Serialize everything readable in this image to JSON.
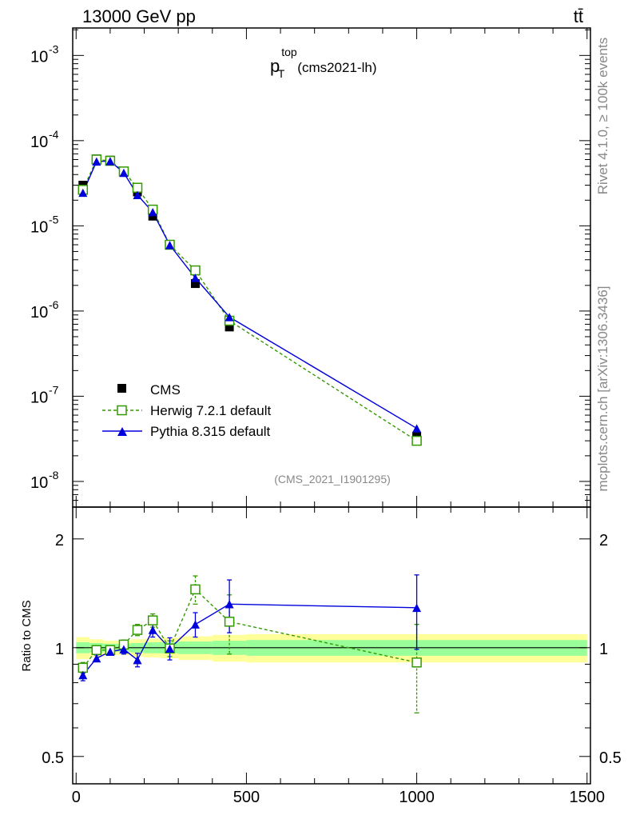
{
  "header": {
    "energy_label": "13000 GeV pp",
    "process_label": "tt̄"
  },
  "side_labels": {
    "rivet": "Rivet 4.1.0, ≥ 100k events",
    "source": "mcplots.cern.ch [arXiv:1306.3436]"
  },
  "plot_title": {
    "var": "p",
    "sup": "top",
    "sub": "T",
    "suffix": "(cms2021-lh)"
  },
  "watermark": "(CMS_2021_I1901295)",
  "legend": {
    "cms": "CMS",
    "herwig": "Herwig 7.2.1 default",
    "pythia": "Pythia 8.315 default"
  },
  "colors": {
    "herwig": "#339900",
    "pythia": "#0000dd",
    "band_inner": "#99ff99",
    "band_outer": "#ffff99"
  },
  "chart_data": [
    {
      "type": "scatter",
      "panel": "main",
      "yscale": "log",
      "xlim": [
        -10,
        1510
      ],
      "ylim": [
        5e-09,
        0.0021
      ],
      "ytick_labels": [
        "10",
        "10",
        "10",
        "10",
        "10",
        "10"
      ],
      "ytick_exponents": [
        "-8",
        "-7",
        "-6",
        "-5",
        "-4",
        "-3"
      ],
      "ytick_values": [
        1e-08,
        1e-07,
        1e-06,
        1e-05,
        0.0001,
        0.001
      ],
      "x": [
        20,
        60,
        100,
        140,
        180,
        225,
        275,
        350,
        450,
        1000
      ],
      "series": [
        {
          "name": "CMS",
          "values": [
            3e-05,
            6.1e-05,
            5.9e-05,
            4.25e-05,
            2.5e-05,
            1.3e-05,
            6e-06,
            2.1e-06,
            6.5e-07,
            3.4e-08
          ]
        },
        {
          "name": "Herwig 7.2.1 default",
          "values": [
            2.65e-05,
            6e-05,
            5.8e-05,
            4.35e-05,
            2.8e-05,
            1.55e-05,
            6e-06,
            3e-06,
            7.7e-07,
            3e-08
          ]
        },
        {
          "name": "Pythia 8.315 default",
          "values": [
            2.45e-05,
            5.7e-05,
            5.75e-05,
            4.2e-05,
            2.3e-05,
            1.45e-05,
            5.95e-06,
            2.45e-06,
            8.5e-07,
            4.2e-08
          ]
        }
      ]
    },
    {
      "type": "line",
      "panel": "ratio",
      "yscale": "log",
      "xlim": [
        -10,
        1510
      ],
      "ylim": [
        0.42,
        2.45
      ],
      "ylabel": "Ratio to CMS",
      "ytick_labels": [
        "0.5",
        "1",
        "2"
      ],
      "ytick_values": [
        0.5,
        1,
        2
      ],
      "xtick_labels": [
        "0",
        "500",
        "1000",
        "1500"
      ],
      "xtick_values": [
        0,
        500,
        1000,
        1500
      ],
      "x": [
        20,
        60,
        100,
        140,
        180,
        225,
        275,
        350,
        450,
        1000
      ],
      "series": [
        {
          "name": "Herwig 7.2.1 default",
          "values": [
            0.88,
            0.985,
            0.985,
            1.02,
            1.12,
            1.19,
            0.995,
            1.45,
            1.18,
            0.91
          ],
          "errors": [
            0.03,
            0.02,
            0.02,
            0.03,
            0.04,
            0.05,
            0.05,
            0.13,
            0.22,
            0.25
          ]
        },
        {
          "name": "Pythia 8.315 default",
          "values": [
            0.84,
            0.935,
            0.975,
            0.99,
            0.925,
            1.12,
            0.995,
            1.16,
            1.32,
            1.29
          ],
          "errors": [
            0.03,
            0.02,
            0.02,
            0.03,
            0.04,
            0.05,
            0.07,
            0.09,
            0.22,
            0.3
          ]
        }
      ],
      "bands": {
        "x_edges": [
          0,
          40,
          80,
          120,
          160,
          200,
          250,
          300,
          400,
          500,
          1500
        ],
        "inner": [
          0.035,
          0.03,
          0.025,
          0.025,
          0.03,
          0.035,
          0.035,
          0.04,
          0.045,
          0.05
        ],
        "outer": [
          0.07,
          0.055,
          0.045,
          0.045,
          0.055,
          0.06,
          0.065,
          0.075,
          0.085,
          0.09
        ]
      }
    }
  ]
}
